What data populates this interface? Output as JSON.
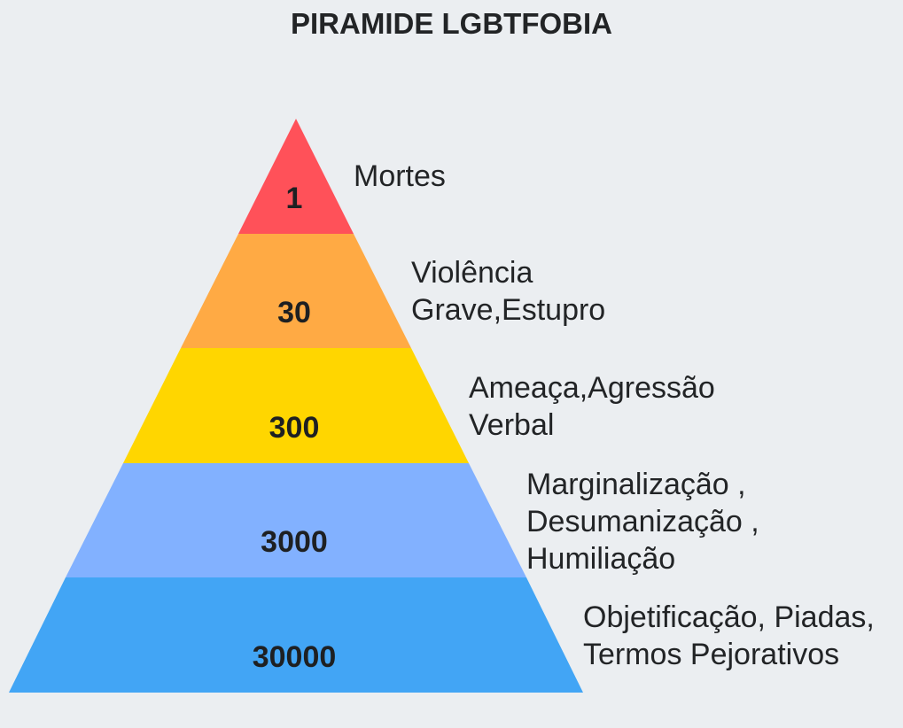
{
  "title": "PIRAMIDE LGBTFOBIA",
  "colors": {
    "background": "#ebeef1",
    "level1": "#ff5159",
    "level2": "#ffaa44",
    "level3": "#ffd600",
    "level4": "#82b1ff",
    "level5": "#42a5f5"
  },
  "levels": [
    {
      "value": "1",
      "label_lines": [
        "Mortes"
      ]
    },
    {
      "value": "30",
      "label_lines": [
        "Violência",
        "Grave,Estupro"
      ]
    },
    {
      "value": "300",
      "label_lines": [
        "Ameaça,Agressão",
        "Verbal"
      ]
    },
    {
      "value": "3000",
      "label_lines": [
        "Marginalização ,",
        "Desumanização ,",
        "Humiliação"
      ]
    },
    {
      "value": "30000",
      "label_lines": [
        "Objetificação, Piadas,",
        "Termos Pejorativos"
      ]
    }
  ]
}
